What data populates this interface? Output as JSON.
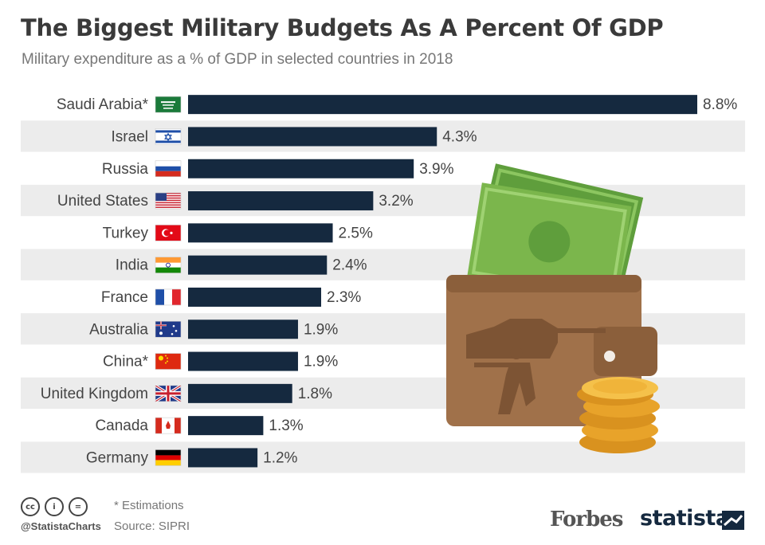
{
  "title": "The Biggest Military Budgets As A Percent Of GDP",
  "subtitle": "Military expenditure as a % of GDP in selected countries in 2018",
  "chart_data": {
    "type": "bar",
    "orientation": "horizontal",
    "categories": [
      "Saudi Arabia*",
      "Israel",
      "Russia",
      "United States",
      "Turkey",
      "India",
      "France",
      "Australia",
      "China*",
      "United Kingdom",
      "Canada",
      "Germany"
    ],
    "values": [
      8.8,
      4.3,
      3.9,
      3.2,
      2.5,
      2.4,
      2.3,
      1.9,
      1.9,
      1.8,
      1.3,
      1.2
    ],
    "value_labels": [
      "8.8%",
      "4.3%",
      "3.9%",
      "3.2%",
      "2.5%",
      "2.4%",
      "2.3%",
      "1.9%",
      "1.9%",
      "1.8%",
      "1.3%",
      "1.2%"
    ],
    "flags": [
      "saudi-arabia",
      "israel",
      "russia",
      "united-states",
      "turkey",
      "india",
      "france",
      "australia",
      "china",
      "united-kingdom",
      "canada",
      "germany"
    ],
    "bar_color": "#15293f",
    "stripe_color": "#ececec",
    "xlim": [
      0,
      8.8
    ],
    "grid": false
  },
  "footer": {
    "handle": "@StatistaCharts",
    "note": "* Estimations",
    "source": "Source: SIPRI",
    "partner": "Forbes",
    "brand": "statista",
    "license_icons": [
      "cc-icon",
      "by-icon",
      "nd-icon"
    ]
  }
}
